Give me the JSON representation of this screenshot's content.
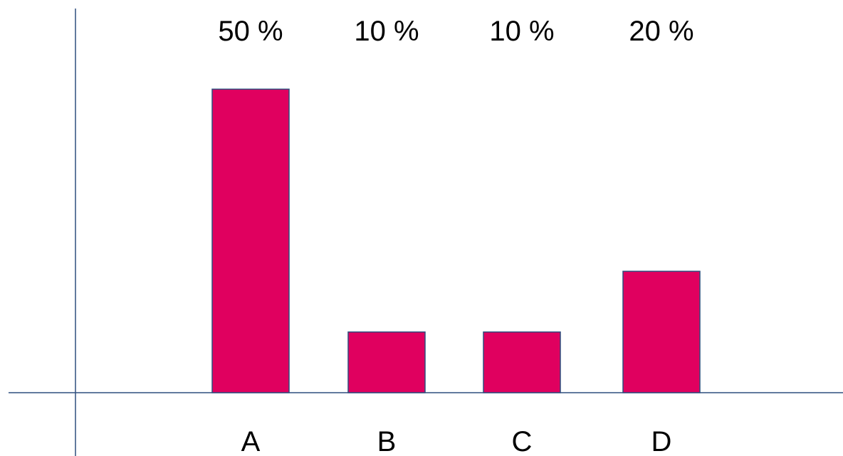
{
  "chart_data": {
    "type": "bar",
    "categories": [
      "A",
      "B",
      "C",
      "D"
    ],
    "values": [
      50,
      10,
      10,
      20
    ],
    "data_labels": [
      "50 %",
      "10 %",
      "10 %",
      "20 %"
    ],
    "ylim": [
      0,
      60
    ],
    "grid": false,
    "legend": "none",
    "colors": {
      "bar": "#E0005F",
      "axis": "#2F4F7F"
    }
  }
}
